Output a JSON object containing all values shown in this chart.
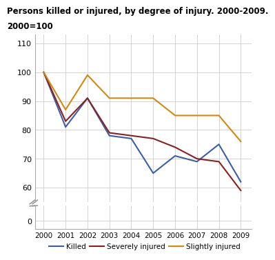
{
  "title_line1": "Persons killed or injured, by degree of injury. 2000-2009.",
  "title_line2": "2000=100",
  "years": [
    2000,
    2001,
    2002,
    2003,
    2004,
    2005,
    2006,
    2007,
    2008,
    2009
  ],
  "killed": [
    100,
    81,
    91,
    78,
    77,
    65,
    71,
    69,
    75,
    62
  ],
  "severely_injured": [
    100,
    83,
    91,
    79,
    78,
    77,
    74,
    70,
    69,
    59
  ],
  "slightly_injured": [
    100,
    87,
    99,
    91,
    91,
    91,
    85,
    85,
    85,
    76
  ],
  "killed_color": "#3a5ea8",
  "severely_injured_color": "#8b2020",
  "slightly_injured_color": "#d4890a",
  "grid_color": "#cccccc",
  "background_color": "#ffffff",
  "legend_killed": "Killed",
  "legend_severely": "Severely injured",
  "legend_slightly": "Slightly injured",
  "linewidth": 1.5,
  "yticks_main": [
    60,
    70,
    80,
    90,
    100,
    110
  ],
  "ytick_zero": 0,
  "ylim_main": [
    55,
    113
  ],
  "xlim": [
    1999.6,
    2009.5
  ]
}
